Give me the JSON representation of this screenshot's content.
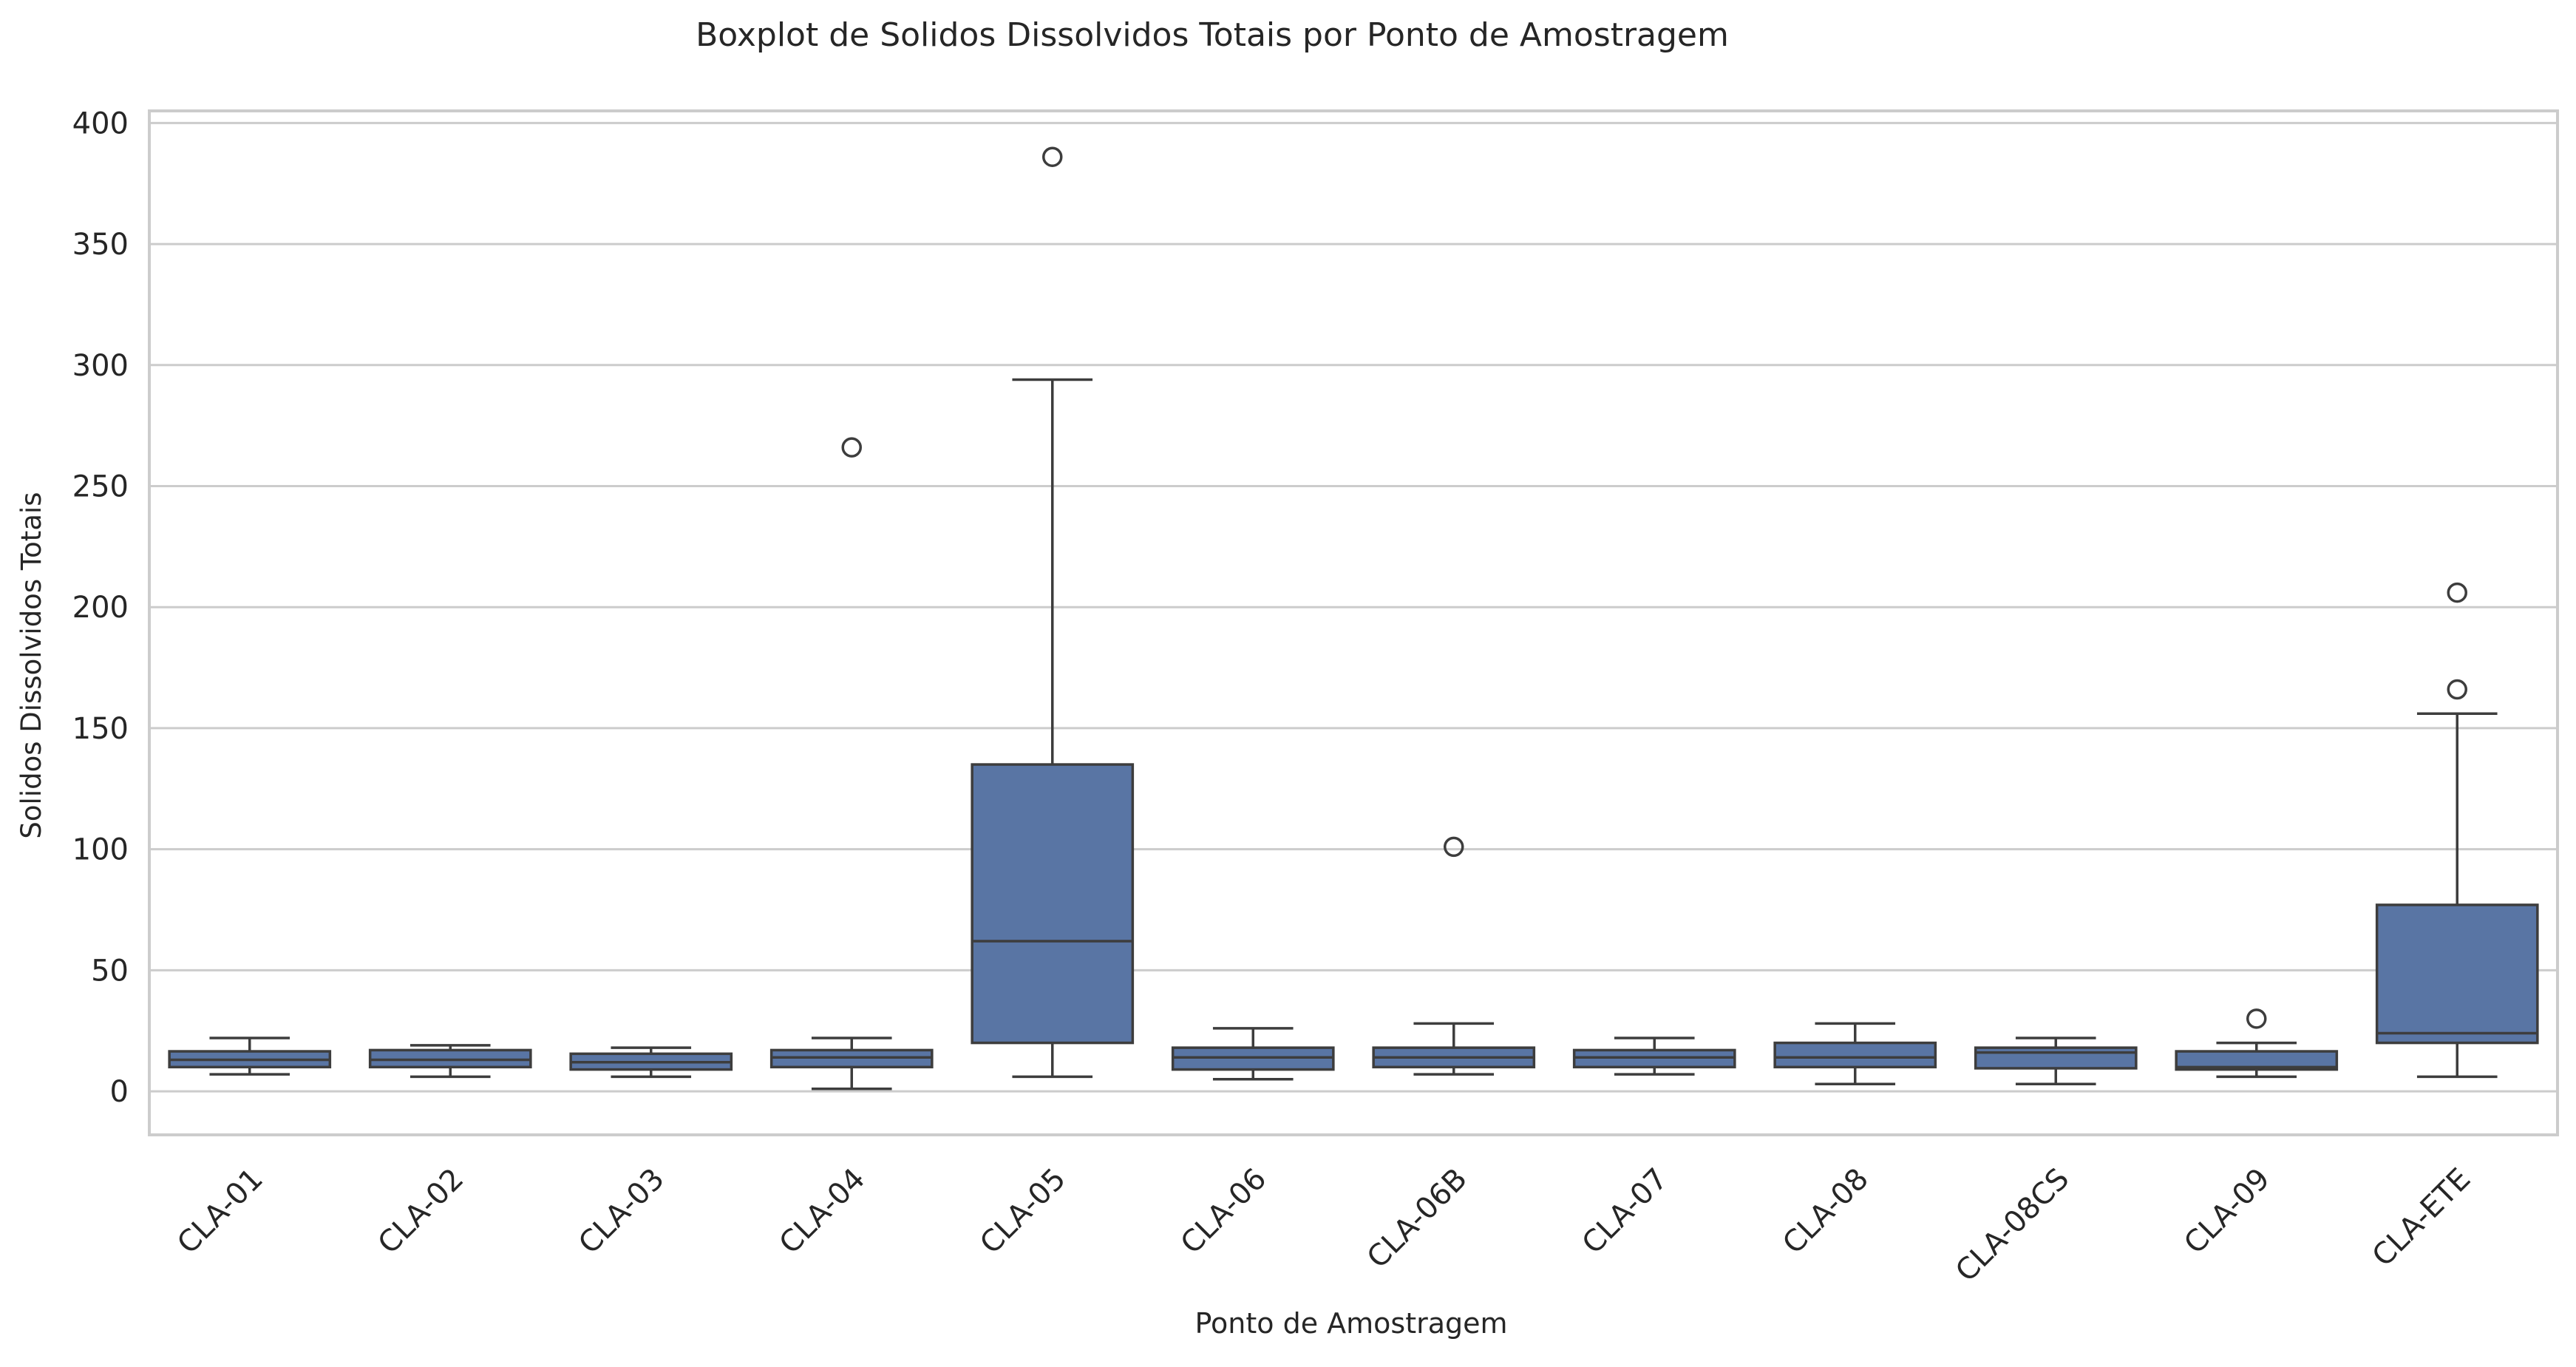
{
  "chart_data": {
    "type": "box",
    "title": "Boxplot de Solidos Dissolvidos Totais por Ponto de Amostragem",
    "xlabel": "Ponto de Amostragem",
    "ylabel": "Solidos Dissolvidos Totais",
    "ylim": [
      -18,
      405
    ],
    "yticks": [
      0,
      50,
      100,
      150,
      200,
      250,
      300,
      350,
      400
    ],
    "grid": "horizontal",
    "x_tick_rotation": 45,
    "colors": {
      "box_fill": "#5975a4",
      "box_line": "#3d3d3d",
      "grid": "#cccccc",
      "frame": "#cccccc",
      "background": "#ffffff"
    },
    "categories": [
      "CLA-01",
      "CLA-02",
      "CLA-03",
      "CLA-04",
      "CLA-05",
      "CLA-06",
      "CLA-06B",
      "CLA-07",
      "CLA-08",
      "CLA-08CS",
      "CLA-09",
      "CLA-ETE"
    ],
    "boxes": [
      {
        "label": "CLA-01",
        "whisker_low": 7,
        "q1": 10,
        "median": 13,
        "q3": 16.5,
        "whisker_high": 22,
        "outliers": []
      },
      {
        "label": "CLA-02",
        "whisker_low": 6,
        "q1": 10,
        "median": 13,
        "q3": 17,
        "whisker_high": 19,
        "outliers": []
      },
      {
        "label": "CLA-03",
        "whisker_low": 6,
        "q1": 9,
        "median": 12,
        "q3": 15.5,
        "whisker_high": 18,
        "outliers": []
      },
      {
        "label": "CLA-04",
        "whisker_low": 1,
        "q1": 10,
        "median": 14,
        "q3": 17,
        "whisker_high": 22,
        "outliers": [
          266
        ]
      },
      {
        "label": "CLA-05",
        "whisker_low": 6,
        "q1": 20,
        "median": 62,
        "q3": 135,
        "whisker_high": 294,
        "outliers": [
          386
        ]
      },
      {
        "label": "CLA-06",
        "whisker_low": 5,
        "q1": 9,
        "median": 14,
        "q3": 18,
        "whisker_high": 26,
        "outliers": []
      },
      {
        "label": "CLA-06B",
        "whisker_low": 7,
        "q1": 10,
        "median": 14,
        "q3": 18,
        "whisker_high": 28,
        "outliers": [
          101
        ]
      },
      {
        "label": "CLA-07",
        "whisker_low": 7,
        "q1": 10,
        "median": 14,
        "q3": 17,
        "whisker_high": 22,
        "outliers": []
      },
      {
        "label": "CLA-08",
        "whisker_low": 3,
        "q1": 10,
        "median": 14,
        "q3": 20,
        "whisker_high": 28,
        "outliers": []
      },
      {
        "label": "CLA-08CS",
        "whisker_low": 3,
        "q1": 9.5,
        "median": 16,
        "q3": 18,
        "whisker_high": 22,
        "outliers": []
      },
      {
        "label": "CLA-09",
        "whisker_low": 6,
        "q1": 9,
        "median": 10,
        "q3": 16.5,
        "whisker_high": 20,
        "outliers": [
          30
        ]
      },
      {
        "label": "CLA-ETE",
        "whisker_low": 6,
        "q1": 20,
        "median": 24,
        "q3": 77,
        "whisker_high": 156,
        "outliers": [
          166,
          206
        ]
      }
    ]
  }
}
